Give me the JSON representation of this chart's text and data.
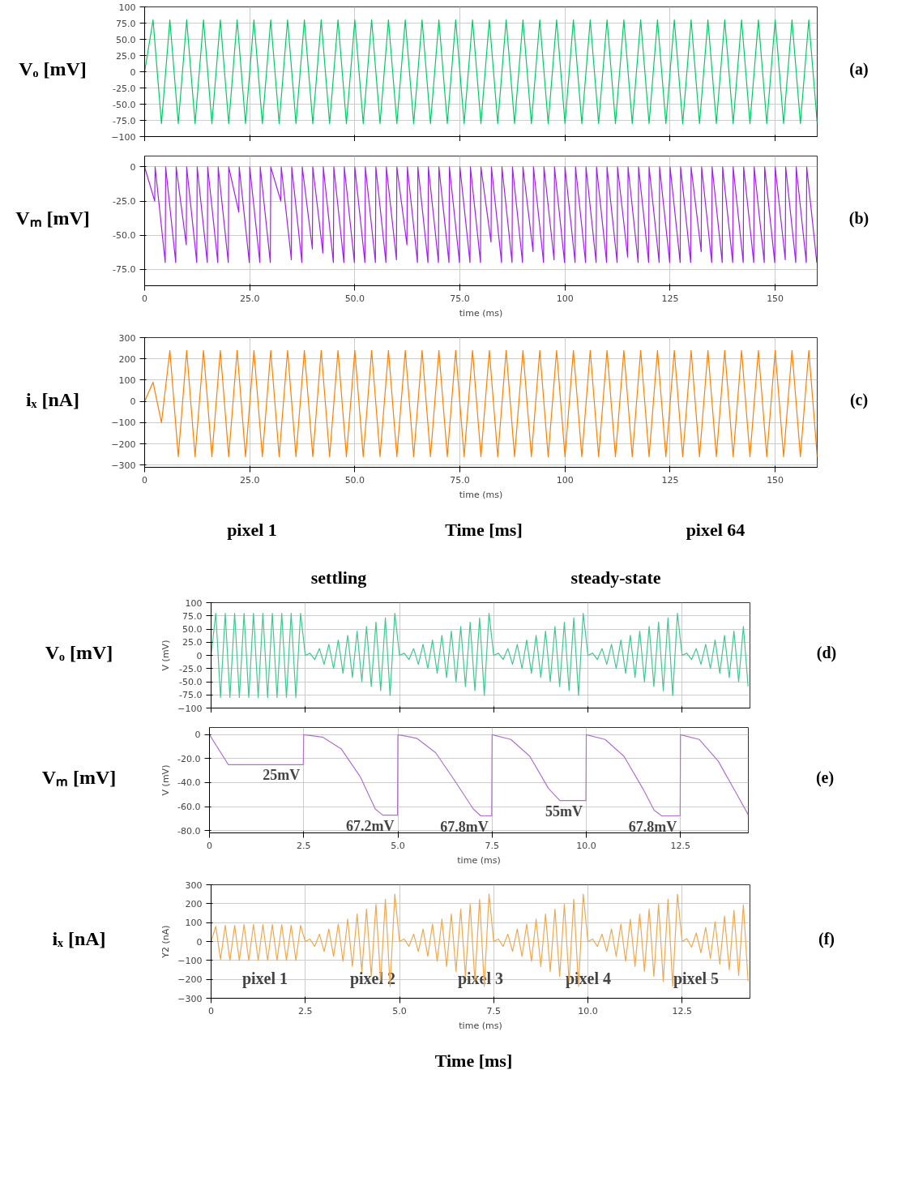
{
  "chart_data": [
    {
      "type": "line",
      "xlim": [
        0,
        160
      ],
      "ylim": [
        -100,
        100
      ],
      "xticks": [
        0,
        25,
        50,
        75,
        100,
        125,
        150
      ],
      "yticks": [
        -100,
        {
          "value": -75,
          "label": "-75.0"
        },
        {
          "value": -50,
          "label": "-50.0"
        },
        {
          "value": -25,
          "label": "-25.0"
        },
        0,
        {
          "value": 25,
          "label": "25.0"
        },
        {
          "value": 50,
          "label": "50.0"
        },
        {
          "value": 75,
          "label": "75.0"
        },
        100
      ],
      "grid": true,
      "tick_labels": "y",
      "annotations": [
        "Vₒ [mV]",
        "(a)"
      ],
      "x": [
        0,
        2,
        4,
        6,
        8,
        10,
        12,
        14,
        16,
        18,
        20,
        22,
        24,
        26,
        28,
        30,
        32,
        34,
        36,
        38,
        40,
        42,
        44,
        46,
        48,
        50,
        52,
        54,
        56,
        58,
        60,
        62,
        64,
        66,
        68,
        70,
        72,
        74,
        76,
        78,
        80,
        82,
        84,
        86,
        88,
        90,
        92,
        94,
        96,
        98,
        100,
        102,
        104,
        106,
        108,
        110,
        112,
        114,
        116,
        118,
        120,
        122,
        124,
        126,
        128,
        130,
        132,
        134,
        136,
        138,
        140,
        142,
        144,
        146,
        148,
        150,
        152,
        154,
        156,
        158,
        160
      ],
      "series": [
        {
          "color": "#00cc66",
          "values": [
            0,
            80,
            -80,
            80,
            -80,
            80,
            -80,
            80,
            -80,
            80,
            -80,
            80,
            -80,
            80,
            -80,
            80,
            -80,
            80,
            -80,
            80,
            -80,
            80,
            -80,
            80,
            -80,
            80,
            -80,
            80,
            -80,
            80,
            -80,
            80,
            -80,
            80,
            -80,
            80,
            -80,
            80,
            -80,
            80,
            -80,
            80,
            -80,
            80,
            -80,
            80,
            -80,
            80,
            -80,
            80,
            -80,
            80,
            -80,
            80,
            -80,
            80,
            -80,
            80,
            -80,
            80,
            -80,
            80,
            -80,
            80,
            -80,
            80,
            -80,
            80,
            -80,
            80,
            -80,
            80,
            -80,
            80,
            -80,
            80,
            -80,
            80,
            -80,
            80,
            -80
          ]
        }
      ]
    },
    {
      "type": "line",
      "xlim": [
        0,
        160
      ],
      "ylim": [
        -87,
        8
      ],
      "xticks": [
        0,
        {
          "value": 25,
          "label": "25.0"
        },
        {
          "value": 50,
          "label": "50.0"
        },
        {
          "value": 75,
          "label": "75.0"
        },
        100,
        125,
        150
      ],
      "yticks": [
        {
          "value": -75,
          "label": "-75.0"
        },
        {
          "value": -50,
          "label": "-50.0"
        },
        {
          "value": -25,
          "label": "-25.0"
        },
        0
      ],
      "grid": true,
      "xlabel": "time (ms)",
      "annotations": [
        "Vₘ [mV]",
        "(b)"
      ],
      "x": [
        0,
        2.4,
        2.5,
        4.9,
        5,
        7.4,
        7.5,
        9.9,
        10,
        12.4,
        12.5,
        14.9,
        15,
        17.4,
        17.5,
        19.9,
        20,
        22.4,
        22.5,
        24.9,
        25,
        27.4,
        27.5,
        29.9,
        30,
        32.4,
        32.5,
        34.9,
        35,
        37.4,
        37.5,
        39.9,
        40,
        42.4,
        42.5,
        44.9,
        45,
        47.4,
        47.5,
        49.9,
        50,
        52.4,
        52.5,
        54.9,
        55,
        57.4,
        57.5,
        59.9,
        60,
        62.4,
        62.5,
        64.9,
        65,
        67.4,
        67.5,
        69.9,
        70,
        72.4,
        72.5,
        74.9,
        75,
        77.4,
        77.5,
        79.9,
        80,
        82.4,
        82.5,
        84.9,
        85,
        87.4,
        87.5,
        89.9,
        90,
        92.4,
        92.5,
        94.9,
        95,
        97.4,
        97.5,
        99.9,
        100,
        102.4,
        102.5,
        104.9,
        105,
        107.4,
        107.5,
        109.9,
        110,
        112.4,
        112.5,
        114.9,
        115,
        117.4,
        117.5,
        119.9,
        120,
        122.4,
        122.5,
        124.9,
        125,
        127.4,
        127.5,
        129.9,
        130,
        132.4,
        132.5,
        134.9,
        135,
        137.4,
        137.5,
        139.9,
        140,
        142.4,
        142.5,
        144.9,
        145,
        147.4,
        147.5,
        149.9,
        150,
        152.4,
        152.5,
        154.9,
        155,
        157.4,
        157.5,
        159.9
      ],
      "series": [
        {
          "color": "#a020f0",
          "values": [
            0,
            -25,
            0,
            -70,
            0,
            -70,
            0,
            -57,
            0,
            -70,
            0,
            -70,
            0,
            -70,
            0,
            -70,
            0,
            -33,
            0,
            -70,
            0,
            -70,
            0,
            -70,
            0,
            -25,
            0,
            -68,
            0,
            -70,
            0,
            -60,
            0,
            -63,
            0,
            -70,
            0,
            -70,
            0,
            -70,
            0,
            -70,
            0,
            -70,
            0,
            -70,
            0,
            -68,
            0,
            -57,
            0,
            -70,
            0,
            -70,
            0,
            -70,
            0,
            -70,
            0,
            -70,
            0,
            -70,
            0,
            -70,
            0,
            -55,
            0,
            -70,
            0,
            -70,
            0,
            -70,
            0,
            -62,
            0,
            -70,
            0,
            -68,
            0,
            -70,
            0,
            -70,
            0,
            -70,
            0,
            -70,
            0,
            -70,
            0,
            -70,
            0,
            -66,
            0,
            -70,
            0,
            -70,
            0,
            -70,
            0,
            -70,
            0,
            -70,
            0,
            -70,
            0,
            -62,
            0,
            -70,
            0,
            -70,
            0,
            -70,
            0,
            -70,
            0,
            -70,
            0,
            -70,
            0,
            -70,
            0,
            -68,
            0,
            -70,
            0,
            -70,
            0,
            -70
          ]
        }
      ]
    },
    {
      "type": "line",
      "xlim": [
        0,
        160
      ],
      "ylim": [
        -310,
        300
      ],
      "xticks": [
        0,
        {
          "value": 25,
          "label": "25.0"
        },
        {
          "value": 50,
          "label": "50.0"
        },
        {
          "value": 75,
          "label": "75.0"
        },
        100,
        125,
        150
      ],
      "yticks": [
        -300,
        -200,
        -100,
        0,
        100,
        200,
        300
      ],
      "grid": true,
      "xlabel": "time (ms)",
      "annotations": [
        "iₓ [nA]",
        "(c)",
        "pixel 1",
        "Time [ms]",
        "pixel 64"
      ],
      "x": [
        0,
        2,
        4,
        6,
        8,
        10,
        12,
        14,
        16,
        18,
        20,
        22,
        24,
        26,
        28,
        30,
        32,
        34,
        36,
        38,
        40,
        42,
        44,
        46,
        48,
        50,
        52,
        54,
        56,
        58,
        60,
        62,
        64,
        66,
        68,
        70,
        72,
        74,
        76,
        78,
        80,
        82,
        84,
        86,
        88,
        90,
        92,
        94,
        96,
        98,
        100,
        102,
        104,
        106,
        108,
        110,
        112,
        114,
        116,
        118,
        120,
        122,
        124,
        126,
        128,
        130,
        132,
        134,
        136,
        138,
        140,
        142,
        144,
        146,
        148,
        150,
        152,
        154,
        156,
        158,
        160
      ],
      "series": [
        {
          "color": "#ff8000",
          "values": [
            0,
            90,
            -100,
            240,
            -260,
            240,
            -260,
            240,
            -260,
            240,
            -260,
            240,
            -260,
            240,
            -260,
            240,
            -260,
            240,
            -260,
            240,
            -260,
            240,
            -260,
            240,
            -260,
            240,
            -260,
            240,
            -260,
            240,
            -260,
            240,
            -260,
            240,
            -260,
            240,
            -260,
            240,
            -260,
            240,
            -260,
            240,
            -260,
            240,
            -260,
            240,
            -260,
            240,
            -260,
            240,
            -260,
            240,
            -260,
            240,
            -260,
            240,
            -260,
            240,
            -260,
            240,
            -260,
            240,
            -260,
            240,
            -260,
            240,
            -260,
            240,
            -260,
            240,
            -260,
            240,
            -260,
            240,
            -260,
            240,
            -260,
            240,
            -260,
            240,
            -260
          ]
        }
      ]
    },
    {
      "type": "line",
      "xlim": [
        0,
        14.3
      ],
      "ylim": [
        -100,
        100
      ],
      "xticks": [
        0,
        2.5,
        5,
        7.5,
        10,
        12.5
      ],
      "yticks": [
        -100,
        {
          "value": -75,
          "label": "-75.0"
        },
        {
          "value": -50,
          "label": "-50.0"
        },
        {
          "value": -25,
          "label": "-25.0"
        },
        0,
        {
          "value": 25,
          "label": "25.0"
        },
        {
          "value": 50,
          "label": "50.0"
        },
        {
          "value": 75,
          "label": "75.0"
        },
        100
      ],
      "grid": true,
      "tick_labels": "y",
      "ylabel": "V (mV)",
      "annotations": [
        "Vₒ [mV]",
        "(d)",
        "settling",
        "steady-state"
      ],
      "x": [
        0,
        0.125,
        0.25,
        0.375,
        0.5,
        0.625,
        0.75,
        0.875,
        1,
        1.125,
        1.25,
        1.375,
        1.5,
        1.625,
        1.75,
        1.875,
        2,
        2.125,
        2.25,
        2.375,
        2.5,
        2.625,
        2.75,
        2.875,
        3,
        3.125,
        3.25,
        3.375,
        3.5,
        3.625,
        3.75,
        3.875,
        4,
        4.125,
        4.25,
        4.375,
        4.5,
        4.625,
        4.75,
        4.875,
        5,
        5.125,
        5.25,
        5.375,
        5.5,
        5.625,
        5.75,
        5.875,
        6,
        6.125,
        6.25,
        6.375,
        6.5,
        6.625,
        6.75,
        6.875,
        7,
        7.125,
        7.25,
        7.375,
        7.5,
        7.625,
        7.75,
        7.875,
        8,
        8.125,
        8.25,
        8.375,
        8.5,
        8.625,
        8.75,
        8.875,
        9,
        9.125,
        9.25,
        9.375,
        9.5,
        9.625,
        9.75,
        9.875,
        10,
        10.125,
        10.25,
        10.375,
        10.5,
        10.625,
        10.75,
        10.875,
        11,
        11.125,
        11.25,
        11.375,
        11.5,
        11.625,
        11.75,
        11.875,
        12,
        12.125,
        12.25,
        12.375,
        12.5,
        12.625,
        12.75,
        12.875,
        13,
        13.125,
        13.25,
        13.375,
        13.5,
        13.625,
        13.75,
        13.875,
        14,
        14.125,
        14.25
      ],
      "series": [
        {
          "color": "#40c890",
          "values": [
            0,
            80,
            -80,
            80,
            -80,
            80,
            -80,
            80,
            -80,
            80,
            -80,
            80,
            -80,
            80,
            -80,
            80,
            -80,
            80,
            -80,
            80,
            0,
            4,
            -8,
            13,
            -17,
            21,
            -25,
            29,
            -34,
            38,
            -42,
            46,
            -50,
            55,
            -59,
            63,
            -67,
            71,
            -76,
            80,
            0,
            4,
            -8,
            13,
            -17,
            21,
            -25,
            29,
            -34,
            38,
            -42,
            46,
            -50,
            55,
            -59,
            63,
            -67,
            71,
            -76,
            80,
            0,
            4,
            -8,
            13,
            -17,
            21,
            -25,
            29,
            -34,
            38,
            -42,
            46,
            -50,
            55,
            -59,
            63,
            -67,
            71,
            -76,
            80,
            0,
            4,
            -8,
            13,
            -17,
            21,
            -25,
            29,
            -34,
            38,
            -42,
            46,
            -50,
            55,
            -59,
            63,
            -67,
            71,
            -76,
            80,
            0,
            4,
            -8,
            13,
            -17,
            21,
            -25,
            29,
            -34,
            38,
            -42,
            46,
            -50,
            55,
            -59
          ]
        }
      ]
    },
    {
      "type": "line",
      "xlim": [
        0,
        14.3
      ],
      "ylim": [
        -82,
        6
      ],
      "xticks": [
        0,
        2.5,
        {
          "value": 5,
          "label": "5.0"
        },
        7.5,
        {
          "value": 10,
          "label": "10.0"
        },
        12.5
      ],
      "yticks": [
        {
          "value": -80,
          "label": "-80.0"
        },
        {
          "value": -60,
          "label": "-60.0"
        },
        {
          "value": -40,
          "label": "-40.0"
        },
        {
          "value": -20,
          "label": "-20.0"
        },
        0
      ],
      "grid": true,
      "xlabel": "time (ms)",
      "ylabel": "V (mV)",
      "annotations": [
        "Vₘ [mV]",
        "(e)",
        {
          "text": "25mV",
          "x": 2.49,
          "y": -25
        },
        {
          "text": "67.2mV",
          "x": 4.99,
          "y": -67.2
        },
        {
          "text": "67.8mV",
          "x": 7.49,
          "y": -67.8
        },
        {
          "text": "55mV",
          "x": 9.99,
          "y": -55
        },
        {
          "text": "67.8mV",
          "x": 12.49,
          "y": -67.8
        }
      ],
      "x": [
        0,
        0.5,
        2.49,
        2.5,
        3.0,
        3.5,
        4.0,
        4.4,
        4.6,
        4.99,
        5.0,
        5.5,
        6.0,
        6.5,
        7.0,
        7.2,
        7.49,
        7.5,
        8.0,
        8.5,
        9.0,
        9.3,
        9.99,
        10.0,
        10.5,
        11.0,
        11.5,
        11.8,
        12.0,
        12.49,
        12.5,
        13.0,
        13.5,
        14.0,
        14.3
      ],
      "series": [
        {
          "color": "#b070d0",
          "values": [
            0,
            -25,
            -25,
            0,
            -2,
            -12,
            -35,
            -62,
            -67.2,
            -67.2,
            0,
            -3,
            -15,
            -38,
            -62,
            -67.8,
            -67.8,
            0,
            -4,
            -18,
            -45,
            -55,
            -55,
            0,
            -4,
            -18,
            -45,
            -63,
            -67.8,
            -67.8,
            0,
            -4,
            -22,
            -50,
            -67
          ]
        }
      ]
    },
    {
      "type": "line",
      "xlim": [
        0,
        14.3
      ],
      "ylim": [
        -300,
        300
      ],
      "xticks": [
        0,
        2.5,
        {
          "value": 5,
          "label": "5.0"
        },
        7.5,
        {
          "value": 10,
          "label": "10.0"
        },
        12.5
      ],
      "yticks": [
        -300,
        -200,
        -100,
        0,
        100,
        200,
        300
      ],
      "grid": true,
      "xlabel": "time (ms)",
      "ylabel": "Y2 (nA)",
      "annotations": [
        "iₓ [nA]",
        "(f)",
        "Time [ms]",
        "pixel 1",
        "pixel 2",
        "pixel 3",
        "pixel 4",
        "pixel 5"
      ],
      "x": [
        0,
        0.125,
        0.25,
        0.375,
        0.5,
        0.625,
        0.75,
        0.875,
        1,
        1.125,
        1.25,
        1.375,
        1.5,
        1.625,
        1.75,
        1.875,
        2,
        2.125,
        2.25,
        2.375,
        2.5,
        2.625,
        2.75,
        2.875,
        3,
        3.125,
        3.25,
        3.375,
        3.5,
        3.625,
        3.75,
        3.875,
        4,
        4.125,
        4.25,
        4.375,
        4.5,
        4.625,
        4.75,
        4.875,
        5,
        5.125,
        5.25,
        5.375,
        5.5,
        5.625,
        5.75,
        5.875,
        6,
        6.125,
        6.25,
        6.375,
        6.5,
        6.625,
        6.75,
        6.875,
        7,
        7.125,
        7.25,
        7.375,
        7.5,
        7.625,
        7.75,
        7.875,
        8,
        8.125,
        8.25,
        8.375,
        8.5,
        8.625,
        8.75,
        8.875,
        9,
        9.125,
        9.25,
        9.375,
        9.5,
        9.625,
        9.75,
        9.875,
        10,
        10.125,
        10.25,
        10.375,
        10.5,
        10.625,
        10.75,
        10.875,
        11,
        11.125,
        11.25,
        11.375,
        11.5,
        11.625,
        11.75,
        11.875,
        12,
        12.125,
        12.25,
        12.375,
        12.5,
        12.625,
        12.75,
        12.875,
        13,
        13.125,
        13.25,
        13.375,
        13.5,
        13.625,
        13.75,
        13.875,
        14,
        14.125,
        14.25
      ],
      "series": [
        {
          "color": "#f0a850",
          "values": [
            0,
            80,
            -95,
            85,
            -100,
            85,
            -100,
            90,
            -100,
            90,
            -100,
            90,
            -100,
            90,
            -100,
            90,
            -100,
            85,
            -100,
            85,
            0,
            13,
            -26,
            39,
            -53,
            66,
            -79,
            92,
            -105,
            118,
            -132,
            145,
            -158,
            171,
            -184,
            197,
            -211,
            224,
            -237,
            250,
            0,
            13,
            -26,
            39,
            -53,
            66,
            -79,
            92,
            -105,
            118,
            -132,
            145,
            -158,
            171,
            -184,
            197,
            -211,
            224,
            -237,
            250,
            0,
            13,
            -26,
            39,
            -53,
            66,
            -79,
            92,
            -105,
            118,
            -132,
            145,
            -158,
            171,
            -184,
            197,
            -211,
            224,
            -237,
            250,
            0,
            13,
            -26,
            39,
            -53,
            66,
            -79,
            92,
            -105,
            118,
            -132,
            145,
            -158,
            171,
            -184,
            197,
            -211,
            224,
            -237,
            250,
            0,
            15,
            -30,
            45,
            -60,
            75,
            -90,
            105,
            -120,
            135,
            -150,
            165,
            -180,
            195,
            -210
          ]
        }
      ]
    }
  ]
}
